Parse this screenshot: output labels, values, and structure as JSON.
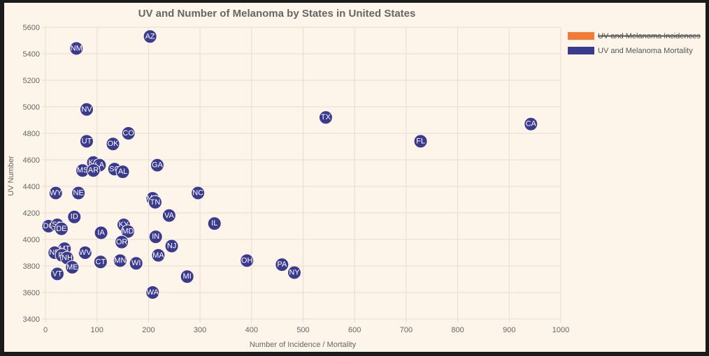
{
  "chart_data": {
    "type": "scatter",
    "title": "UV and Number of Melanoma by States in United States",
    "xlabel": "Number of Incidence / Mortality",
    "ylabel": "UV Number",
    "xlim": [
      0,
      1000
    ],
    "ylim": [
      3400,
      5600
    ],
    "x_ticks": [
      0,
      100,
      200,
      300,
      400,
      500,
      600,
      700,
      800,
      900,
      1000
    ],
    "y_ticks": [
      3400,
      3600,
      3800,
      4000,
      4200,
      4400,
      4600,
      4800,
      5000,
      5200,
      5400,
      5600
    ],
    "grid": true,
    "legend_position": "right",
    "series": [
      {
        "name": "UV and Melanoma Incidences",
        "color": "#f47a35",
        "hidden": true,
        "points": []
      },
      {
        "name": "UV and Melanoma Mortality",
        "color": "#3a3a8f",
        "hidden": false,
        "points": [
          {
            "label": "AZ",
            "x": 203,
            "y": 5530
          },
          {
            "label": "NM",
            "x": 60,
            "y": 5440
          },
          {
            "label": "NV",
            "x": 80,
            "y": 4980
          },
          {
            "label": "TX",
            "x": 544,
            "y": 4920
          },
          {
            "label": "CA",
            "x": 942,
            "y": 4870
          },
          {
            "label": "CO",
            "x": 161,
            "y": 4800
          },
          {
            "label": "FL",
            "x": 728,
            "y": 4740
          },
          {
            "label": "UT",
            "x": 80,
            "y": 4740
          },
          {
            "label": "OK",
            "x": 131,
            "y": 4720
          },
          {
            "label": "KS",
            "x": 93,
            "y": 4580
          },
          {
            "label": "LA",
            "x": 105,
            "y": 4560
          },
          {
            "label": "GA",
            "x": 217,
            "y": 4560
          },
          {
            "label": "MS",
            "x": 72,
            "y": 4520
          },
          {
            "label": "AR",
            "x": 93,
            "y": 4520
          },
          {
            "label": "SC",
            "x": 134,
            "y": 4530
          },
          {
            "label": "AL",
            "x": 150,
            "y": 4510
          },
          {
            "label": "WY",
            "x": 20,
            "y": 4350
          },
          {
            "label": "NE",
            "x": 64,
            "y": 4350
          },
          {
            "label": "NC",
            "x": 296,
            "y": 4350
          },
          {
            "label": "MO",
            "x": 208,
            "y": 4310
          },
          {
            "label": "TN",
            "x": 213,
            "y": 4280
          },
          {
            "label": "VA",
            "x": 240,
            "y": 4180
          },
          {
            "label": "ID",
            "x": 56,
            "y": 4170
          },
          {
            "label": "IL",
            "x": 328,
            "y": 4120
          },
          {
            "label": "KY",
            "x": 152,
            "y": 4110
          },
          {
            "label": "DC",
            "x": 6,
            "y": 4100
          },
          {
            "label": "SD",
            "x": 23,
            "y": 4110
          },
          {
            "label": "DE",
            "x": 31,
            "y": 4080
          },
          {
            "label": "IA",
            "x": 108,
            "y": 4050
          },
          {
            "label": "MD",
            "x": 160,
            "y": 4060
          },
          {
            "label": "IN",
            "x": 214,
            "y": 4020
          },
          {
            "label": "OR",
            "x": 148,
            "y": 3980
          },
          {
            "label": "NJ",
            "x": 245,
            "y": 3950
          },
          {
            "label": "MT",
            "x": 37,
            "y": 3930
          },
          {
            "label": "ND",
            "x": 18,
            "y": 3900
          },
          {
            "label": "RI",
            "x": 32,
            "y": 3880
          },
          {
            "label": "WV",
            "x": 77,
            "y": 3900
          },
          {
            "label": "NH",
            "x": 42,
            "y": 3860
          },
          {
            "label": "MA",
            "x": 219,
            "y": 3880
          },
          {
            "label": "OH",
            "x": 391,
            "y": 3840
          },
          {
            "label": "CT",
            "x": 107,
            "y": 3830
          },
          {
            "label": "MN",
            "x": 145,
            "y": 3840
          },
          {
            "label": "WI",
            "x": 176,
            "y": 3820
          },
          {
            "label": "ME",
            "x": 52,
            "y": 3790
          },
          {
            "label": "PA",
            "x": 459,
            "y": 3810
          },
          {
            "label": "NY",
            "x": 483,
            "y": 3750
          },
          {
            "label": "VT",
            "x": 23,
            "y": 3740
          },
          {
            "label": "MI",
            "x": 275,
            "y": 3720
          },
          {
            "label": "WA",
            "x": 208,
            "y": 3600
          }
        ]
      }
    ]
  }
}
